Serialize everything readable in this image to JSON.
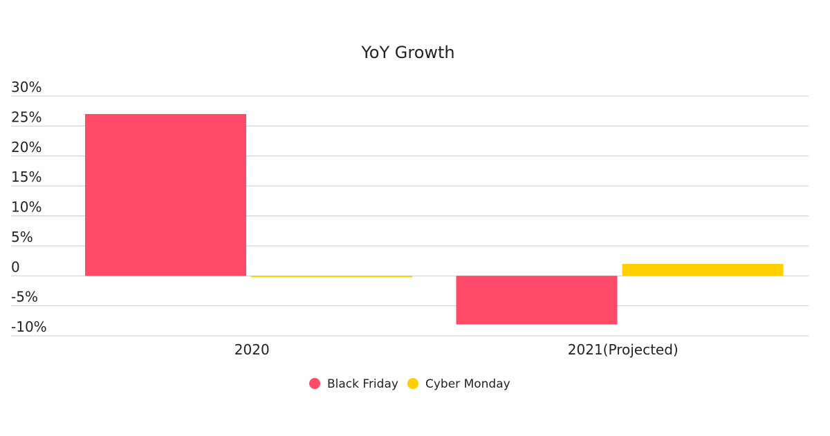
{
  "chart_data": {
    "type": "bar",
    "title": "YoY Growth",
    "categories": [
      "2020",
      "2021(Projected)"
    ],
    "series": [
      {
        "name": "Black Friday",
        "color": "#ff4a6a",
        "values": [
          27.0,
          -8.1
        ]
      },
      {
        "name": "Cyber Monday",
        "color": "#ffd000",
        "values": [
          -0.2,
          2.0
        ]
      }
    ],
    "yticks": [
      30,
      25,
      20,
      15,
      10,
      5,
      0,
      -5,
      -10
    ],
    "ytick_labels": [
      "30%",
      "25%",
      "20%",
      "15%",
      "10%",
      "5%",
      "0",
      "-5%",
      "-10%"
    ],
    "ylim": [
      -10,
      30
    ],
    "grid": true,
    "legend": "bottom"
  }
}
